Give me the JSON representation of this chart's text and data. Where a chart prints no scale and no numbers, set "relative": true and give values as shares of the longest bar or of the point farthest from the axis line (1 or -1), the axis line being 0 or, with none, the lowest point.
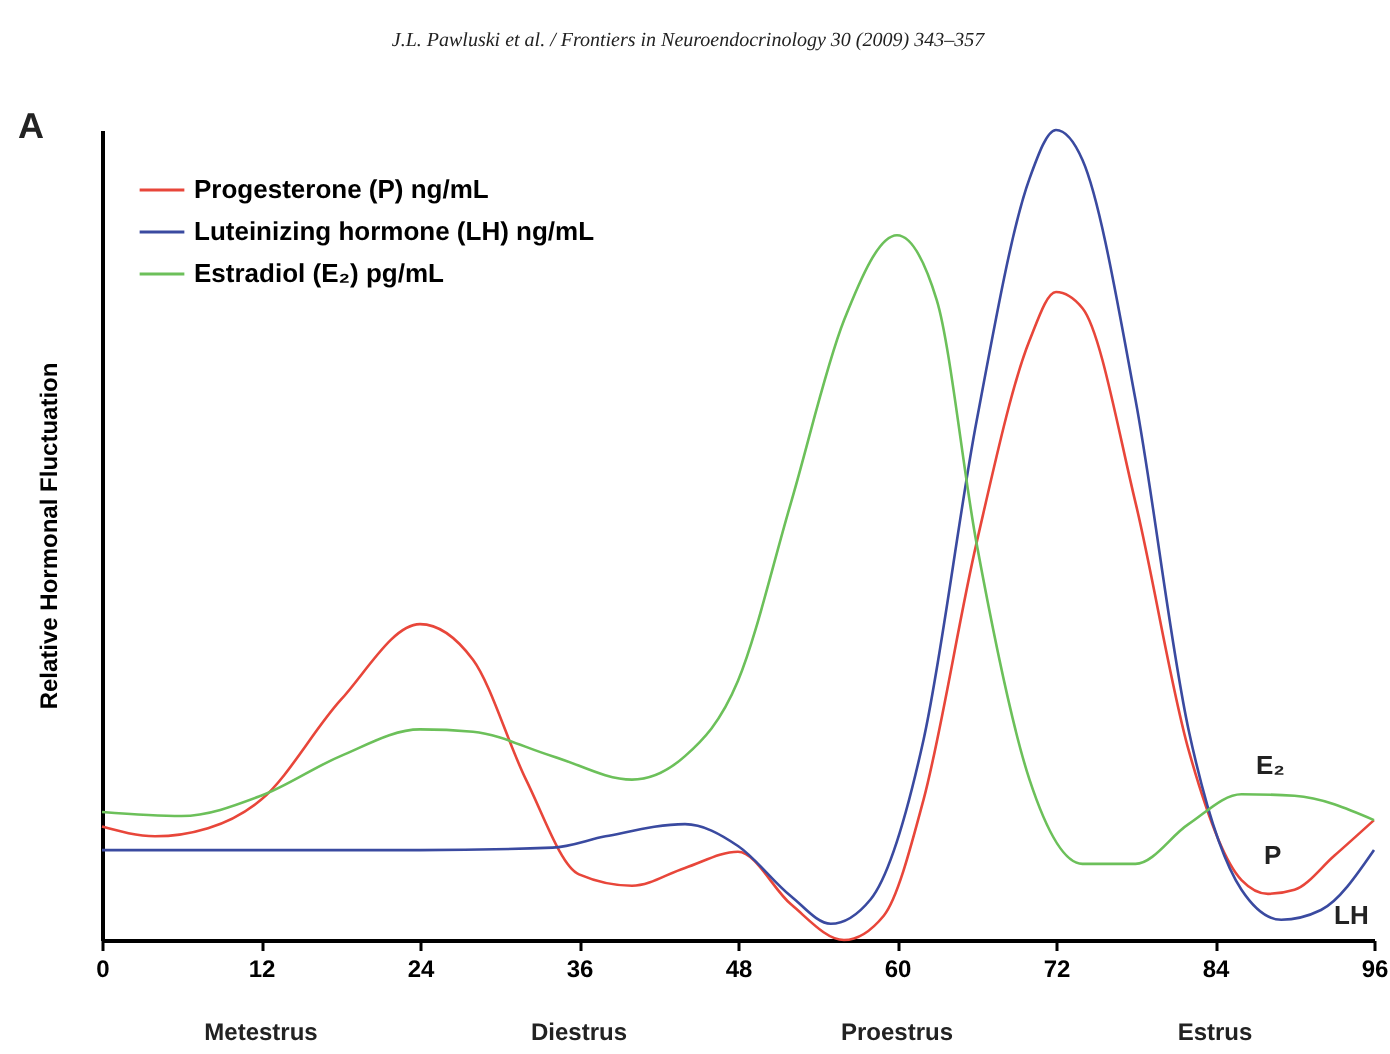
{
  "chart_data": {
    "type": "line",
    "relative": true,
    "ylabel": "Relative Hormonal Fluctuation",
    "xlim": [
      0,
      96
    ],
    "xticks": [
      0,
      12,
      24,
      36,
      48,
      60,
      72,
      84,
      96
    ],
    "grid": false,
    "legend": "top left",
    "marker": "none",
    "line_style": "solid",
    "annotations": [
      "J.L. Pawluski et al. / Frontiers in Neuroendocrinology 30 (2009) 343–357",
      "A",
      "Metestrus",
      "Diestrus",
      "Proestrus",
      "Estrus",
      "E₂",
      "P",
      "LH"
    ],
    "series": [
      {
        "name": "Progesterone (P) ng/mL",
        "color": "#e8463a",
        "x": [
          0,
          4,
          8,
          12,
          18,
          24,
          28,
          32,
          36,
          40,
          44,
          48,
          52,
          56,
          59,
          62,
          66,
          70,
          72,
          74,
          78,
          82,
          86,
          88,
          90,
          93,
          96
        ],
        "values": [
          0.14,
          0.128,
          0.138,
          0.173,
          0.296,
          0.39,
          0.346,
          0.198,
          0.081,
          0.067,
          0.089,
          0.109,
          0.044,
          0,
          0.03,
          0.173,
          0.49,
          0.74,
          0.8,
          0.78,
          0.54,
          0.235,
          0.074,
          0.057,
          0.062,
          0.104,
          0.148
        ]
      },
      {
        "name": "Luteinizing hormone (LH) ng/mL",
        "color": "#3a4aa0",
        "x": [
          0,
          12,
          24,
          34,
          38,
          44,
          48,
          52,
          55,
          58,
          62,
          66,
          70,
          72,
          74,
          78,
          82,
          86,
          89,
          92,
          96
        ],
        "values": [
          0.111,
          0.111,
          0.111,
          0.114,
          0.128,
          0.143,
          0.116,
          0.054,
          0.02,
          0.05,
          0.247,
          0.64,
          0.94,
          1,
          0.963,
          0.667,
          0.26,
          0.062,
          0.025,
          0.037,
          0.111
        ]
      },
      {
        "name": "Estradiol (E₂) pg/mL",
        "color": "#6cc05a",
        "x": [
          0,
          6,
          12,
          18,
          24,
          28,
          34,
          40,
          44,
          48,
          52,
          56,
          60,
          63,
          66,
          70,
          74,
          78,
          82,
          86,
          90,
          96
        ],
        "values": [
          0.158,
          0.153,
          0.178,
          0.227,
          0.26,
          0.257,
          0.227,
          0.198,
          0.227,
          0.32,
          0.54,
          0.765,
          0.87,
          0.79,
          0.49,
          0.198,
          0.094,
          0.094,
          0.143,
          0.18,
          0.178,
          0.148
        ]
      }
    ]
  }
}
